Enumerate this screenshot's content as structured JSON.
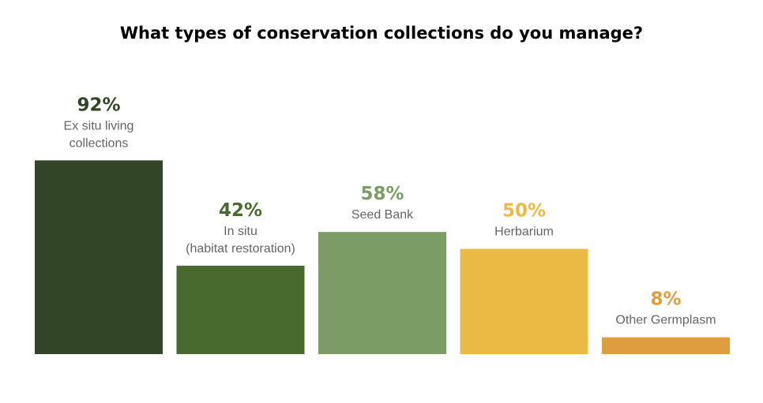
{
  "chart_data": {
    "type": "bar",
    "title": "What types of conservation collections do you manage?",
    "categories": [
      [
        "Ex situ living",
        "collections"
      ],
      [
        "In situ",
        "(habitat restoration)"
      ],
      [
        "Seed Bank"
      ],
      [
        "Herbarium"
      ],
      [
        "Other Germplasm"
      ]
    ],
    "values": [
      92,
      42,
      58,
      50,
      8
    ],
    "value_labels": [
      "92%",
      "42%",
      "58%",
      "50%",
      "8%"
    ],
    "colors": [
      "#334527",
      "#486a2f",
      "#7c9c66",
      "#ebba45",
      "#df9e3d"
    ],
    "ylim": [
      0,
      100
    ],
    "xlabel": "",
    "ylabel": "",
    "grid": false,
    "legend": "none"
  }
}
